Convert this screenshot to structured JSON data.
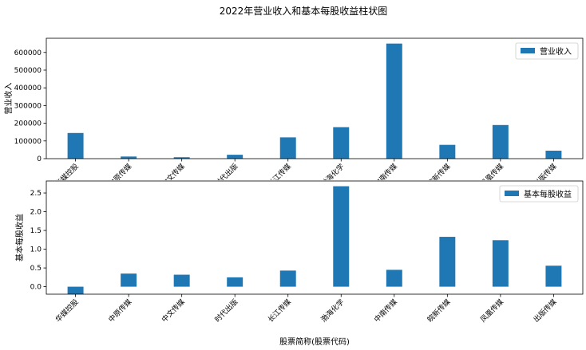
{
  "title": "2022年营业收入和基本每股收益柱状图",
  "colors": {
    "bar": "#1f77b4",
    "axis": "#000000",
    "legend_border": "#cccccc"
  },
  "chart_data": [
    {
      "type": "bar",
      "title": "",
      "xlabel": "",
      "ylabel": "营业收入",
      "categories": [
        "华媒控股",
        "中原传媒",
        "中文传媒",
        "时代出版",
        "长江传媒",
        "渤海化学",
        "中南传媒",
        "皖新传媒",
        "凤凰传媒",
        "出版传媒"
      ],
      "series": [
        {
          "name": "营业收入",
          "values": [
            145000,
            12000,
            8000,
            22000,
            120000,
            178000,
            650000,
            78000,
            190000,
            45000
          ]
        }
      ],
      "ylim": [
        0,
        680000
      ],
      "yticks": [
        0,
        100000,
        200000,
        300000,
        400000,
        500000,
        600000
      ],
      "grid": false,
      "legend": "top-right"
    },
    {
      "type": "bar",
      "title": "",
      "xlabel": "股票简称(股票代码)",
      "ylabel": "基本每股收益",
      "categories": [
        "华媒控股",
        "中原传媒",
        "中文传媒",
        "时代出版",
        "长江传媒",
        "渤海化学",
        "中南传媒",
        "皖新传媒",
        "凤凰传媒",
        "出版传媒"
      ],
      "series": [
        {
          "name": "基本每股收益",
          "values": [
            -0.2,
            0.35,
            0.32,
            0.25,
            0.43,
            2.68,
            0.45,
            1.33,
            1.24,
            0.56
          ]
        }
      ],
      "ylim": [
        -0.2,
        2.82
      ],
      "yticks": [
        0.0,
        0.5,
        1.0,
        1.5,
        2.0,
        2.5
      ],
      "grid": false,
      "legend": "top-right"
    }
  ]
}
